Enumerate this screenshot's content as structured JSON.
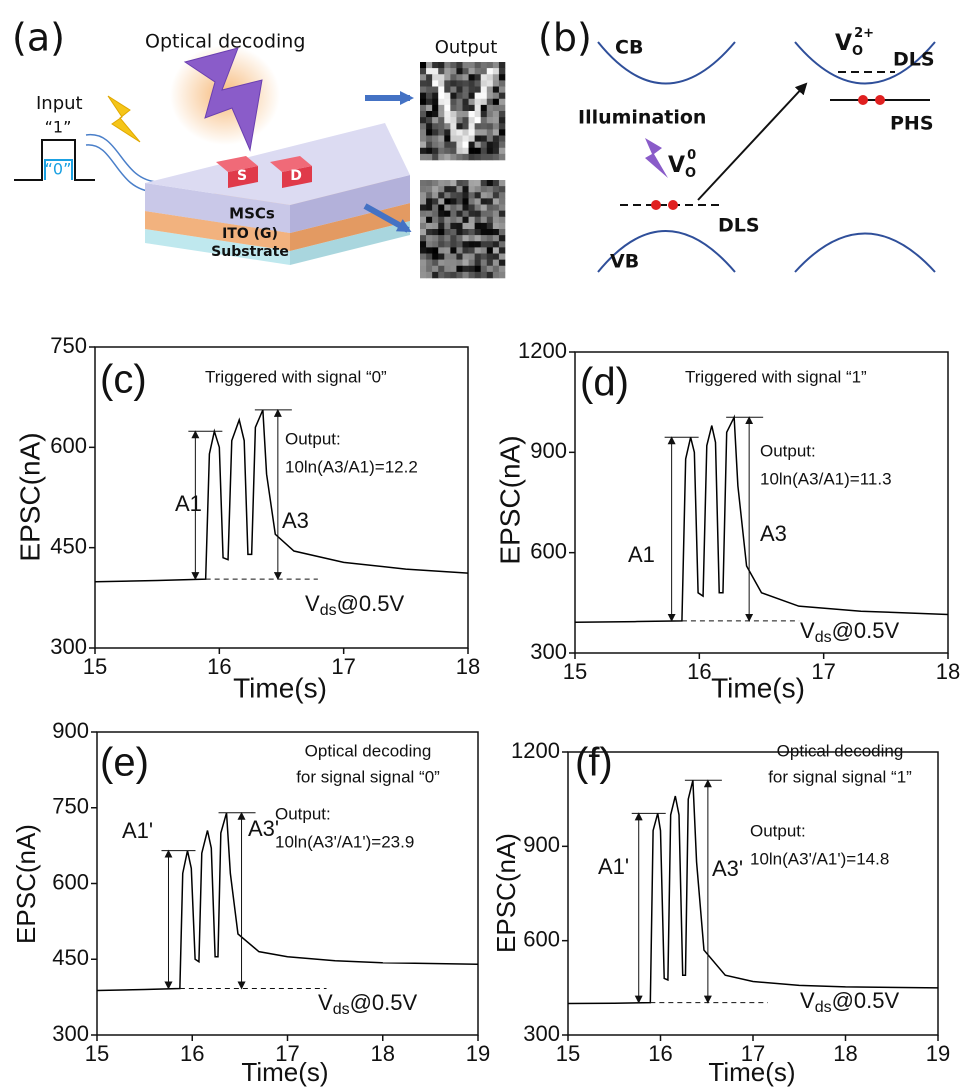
{
  "panel_a": {
    "label": "(a)",
    "title": "Optical decoding",
    "output": "Output",
    "input": "Input",
    "one": "“1”",
    "zero": "“0”",
    "source": "S",
    "drain": "D",
    "layers": [
      "MSCs",
      "ITO (G)",
      "Substrate"
    ]
  },
  "panel_b": {
    "label": "(b)",
    "cb": "CB",
    "vb": "VB",
    "illumination": "Illumination",
    "dls_left": "DLS",
    "dls_right": "DLS",
    "phs": "PHS",
    "vo_neutral": {
      "base": "V",
      "sub": "O",
      "sup": "0"
    },
    "vo_charged": {
      "base": "V",
      "sub": "O",
      "sup": "2+"
    }
  },
  "chart_data": [
    {
      "type": "line",
      "panel": "(c)",
      "note": [
        "Triggered with signal “0”"
      ],
      "output": [
        "Output:",
        "10ln(A3/A1)=12.2"
      ],
      "arrow_labels": [
        "A1",
        "A3"
      ],
      "bias": {
        "base": "V",
        "sub": "ds",
        "rest": "@0.5V"
      },
      "xlabel": "Time(s)",
      "ylabel": "EPSC(nA)",
      "xlim": [
        15,
        18
      ],
      "xticks": [
        15,
        16,
        17,
        18
      ],
      "ylim": [
        300,
        750
      ],
      "yticks": [
        300,
        450,
        600,
        750
      ],
      "color": "#000000",
      "x": [
        15,
        15.5,
        15.89,
        15.92,
        15.96,
        16.0,
        16.03,
        16.07,
        16.1,
        16.16,
        16.2,
        16.23,
        16.26,
        16.29,
        16.35,
        16.38,
        16.45,
        16.6,
        17,
        17.5,
        18
      ],
      "values": [
        399,
        401,
        403,
        590,
        624,
        600,
        435,
        432,
        610,
        641,
        610,
        440,
        440,
        630,
        656,
        560,
        470,
        445,
        428,
        418,
        412
      ]
    },
    {
      "type": "line",
      "panel": "(d)",
      "note": [
        "Triggered with signal “1”"
      ],
      "output": [
        "Output:",
        "10ln(A3/A1)=11.3"
      ],
      "arrow_labels": [
        "A1",
        "A3"
      ],
      "bias": {
        "base": "V",
        "sub": "ds",
        "rest": "@0.5V"
      },
      "xlabel": "Time(s)",
      "ylabel": "EPSC(nA)",
      "xlim": [
        15,
        18
      ],
      "xticks": [
        15,
        16,
        17,
        18
      ],
      "ylim": [
        300,
        1200
      ],
      "yticks": [
        300,
        600,
        900,
        1200
      ],
      "color": "#000000",
      "x": [
        15,
        15.5,
        15.86,
        15.89,
        15.93,
        15.96,
        15.99,
        16.03,
        16.06,
        16.1,
        16.13,
        16.16,
        16.19,
        16.22,
        16.28,
        16.31,
        16.38,
        16.5,
        16.8,
        17.3,
        18
      ],
      "values": [
        392,
        394,
        396,
        880,
        945,
        900,
        480,
        470,
        920,
        980,
        930,
        480,
        480,
        960,
        1005,
        800,
        560,
        480,
        440,
        425,
        415
      ]
    },
    {
      "type": "line",
      "panel": "(e)",
      "note": [
        "Optical decoding",
        "for signal signal “0”"
      ],
      "output": [
        "Output:",
        "10ln(A3'/A1')=23.9"
      ],
      "arrow_labels": [
        "A1'",
        "A3'"
      ],
      "bias": {
        "base": "V",
        "sub": "ds",
        "rest": "@0.5V"
      },
      "xlabel": "Time(s)",
      "ylabel": "EPSC(nA)",
      "xlim": [
        15,
        19
      ],
      "xticks": [
        15,
        16,
        17,
        18,
        19
      ],
      "ylim": [
        300,
        900
      ],
      "yticks": [
        300,
        450,
        600,
        750,
        900
      ],
      "color": "#000000",
      "x": [
        15,
        15.5,
        15.87,
        15.9,
        15.95,
        15.99,
        16.03,
        16.07,
        16.1,
        16.16,
        16.2,
        16.24,
        16.27,
        16.3,
        16.36,
        16.4,
        16.48,
        16.7,
        17,
        17.5,
        18,
        19
      ],
      "values": [
        388,
        390,
        392,
        620,
        665,
        630,
        450,
        445,
        660,
        705,
        670,
        455,
        455,
        700,
        740,
        620,
        500,
        465,
        455,
        447,
        443,
        440
      ]
    },
    {
      "type": "line",
      "panel": "(f)",
      "note": [
        "Optical decoding",
        "for signal signal “1”"
      ],
      "output": [
        "Output:",
        "10ln(A3'/A1')=14.8"
      ],
      "arrow_labels": [
        "A1'",
        "A3'"
      ],
      "bias": {
        "base": "V",
        "sub": "ds",
        "rest": "@0.5V"
      },
      "xlabel": "Time(s)",
      "ylabel": "EPSC(nA)",
      "xlim": [
        15,
        19
      ],
      "xticks": [
        15,
        16,
        17,
        18,
        19
      ],
      "ylim": [
        300,
        1200
      ],
      "yticks": [
        300,
        600,
        900,
        1200
      ],
      "color": "#000000",
      "x": [
        15,
        15.5,
        15.89,
        15.92,
        15.97,
        16.0,
        16.04,
        16.08,
        16.11,
        16.16,
        16.2,
        16.24,
        16.27,
        16.3,
        16.35,
        16.39,
        16.47,
        16.7,
        17,
        17.5,
        18,
        19
      ],
      "values": [
        400,
        401,
        403,
        950,
        1005,
        950,
        480,
        475,
        1000,
        1060,
        1000,
        490,
        490,
        1050,
        1110,
        850,
        570,
        490,
        470,
        458,
        453,
        450
      ]
    }
  ]
}
